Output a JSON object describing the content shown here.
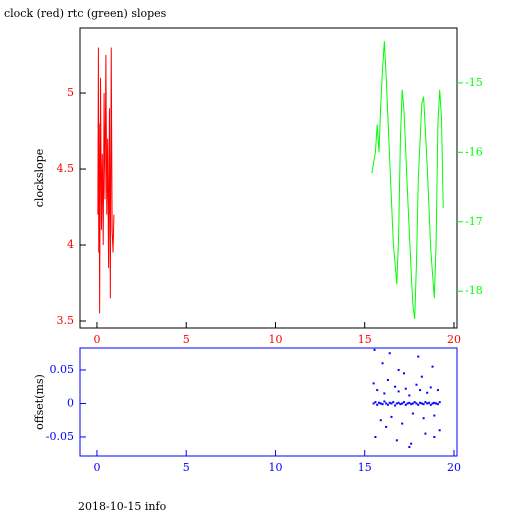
{
  "chart_data": [
    {
      "type": "line",
      "title": "clock (red) rtc (green) slopes",
      "ylabel": "clockslope",
      "xlim": [
        -0.95,
        20.17
      ],
      "xticks": [
        0,
        5,
        10,
        15,
        20
      ],
      "ylim": [
        3.454,
        5.428
      ],
      "yticks": [
        3.5,
        4,
        4.5,
        5
      ],
      "y2lim": [
        -18.53,
        -14.21
      ],
      "y2ticks": [
        -15,
        -16,
        -17,
        -18
      ],
      "series": [
        {
          "name": "clock",
          "color": "#ff0000",
          "x": [
            0.05,
            0.08,
            0.1,
            0.12,
            0.15,
            0.18,
            0.2,
            0.25,
            0.3,
            0.35,
            0.4,
            0.45,
            0.5,
            0.55,
            0.6,
            0.65,
            0.7,
            0.75,
            0.8,
            0.85,
            0.9,
            0.95
          ],
          "values": [
            4.2,
            5.3,
            3.95,
            4.8,
            3.55,
            4.5,
            5.1,
            4.1,
            4.6,
            4.0,
            5.0,
            4.3,
            5.25,
            4.2,
            4.7,
            3.85,
            4.9,
            3.65,
            5.3,
            4.1,
            3.95,
            4.2
          ]
        },
        {
          "name": "rtc",
          "color": "#00ff00",
          "axis": "y2",
          "x": [
            15.4,
            15.6,
            15.7,
            15.8,
            15.9,
            16.0,
            16.1,
            16.2,
            16.4,
            16.6,
            16.8,
            16.9,
            17.0,
            17.1,
            17.2,
            17.4,
            17.6,
            17.7,
            17.8,
            17.9,
            18.0,
            18.2,
            18.3,
            18.5,
            18.7,
            18.9,
            19.0,
            19.1,
            19.2,
            19.3,
            19.4
          ],
          "values": [
            -16.3,
            -16.0,
            -15.6,
            -16.0,
            -15.3,
            -14.8,
            -14.4,
            -14.9,
            -16.1,
            -17.3,
            -17.9,
            -17.2,
            -15.8,
            -15.1,
            -15.4,
            -16.6,
            -17.7,
            -18.2,
            -18.4,
            -17.6,
            -16.4,
            -15.3,
            -15.2,
            -16.2,
            -17.4,
            -18.1,
            -17.3,
            -15.6,
            -15.1,
            -15.5,
            -16.8
          ]
        }
      ]
    },
    {
      "type": "scatter",
      "ylabel": "offset(ms)",
      "color": "#0000ff",
      "xlim": [
        -0.95,
        20.17
      ],
      "xticks": [
        0,
        5,
        10,
        15,
        20
      ],
      "ylim": [
        -0.0784,
        0.0828
      ],
      "yticks": [
        0.05,
        0,
        -0.05
      ],
      "x": [
        15.5,
        15.6,
        15.7,
        15.8,
        15.9,
        16.0,
        16.1,
        16.2,
        16.3,
        16.4,
        16.5,
        16.6,
        16.7,
        16.8,
        16.9,
        17.0,
        17.1,
        17.2,
        17.3,
        17.4,
        17.5,
        17.6,
        17.7,
        17.8,
        17.9,
        18.0,
        18.1,
        18.2,
        18.3,
        18.4,
        18.5,
        18.6,
        18.7,
        18.8,
        18.9,
        19.0,
        19.1,
        19.2,
        15.5,
        15.7,
        15.9,
        16.1,
        16.3,
        16.5,
        16.7,
        16.9,
        17.1,
        17.3,
        17.5,
        17.7,
        17.9,
        18.1,
        18.3,
        18.5,
        18.7,
        18.9,
        19.1,
        15.6,
        16.0,
        16.4,
        16.8,
        17.2,
        17.6,
        18.0,
        18.4,
        18.8,
        19.2,
        15.55,
        16.2,
        16.9,
        17.5,
        18.2,
        18.9
      ],
      "values": [
        0,
        0.002,
        -0.002,
        0.001,
        0,
        -0.001,
        0.003,
        0,
        -0.002,
        0.001,
        0,
        0.002,
        -0.003,
        0,
        0.001,
        -0.001,
        0,
        0.002,
        -0.002,
        0,
        0.001,
        -0.001,
        0,
        0.002,
        0,
        -0.002,
        0.001,
        0,
        -0.001,
        0.002,
        0,
        0.001,
        -0.002,
        0,
        0.001,
        0,
        -0.001,
        0.002,
        0.03,
        0.02,
        -0.025,
        0.015,
        0.035,
        -0.02,
        0.025,
        0.018,
        -0.03,
        0.022,
        0.012,
        -0.015,
        0.028,
        0.02,
        -0.022,
        0.016,
        0.024,
        -0.018,
        0.02,
        -0.05,
        0.06,
        0.075,
        -0.055,
        0.045,
        -0.06,
        0.07,
        -0.045,
        0.055,
        -0.04,
        0.08,
        -0.035,
        0.05,
        -0.065,
        0.04,
        -0.05
      ]
    }
  ],
  "footer": "2018-10-15 info"
}
